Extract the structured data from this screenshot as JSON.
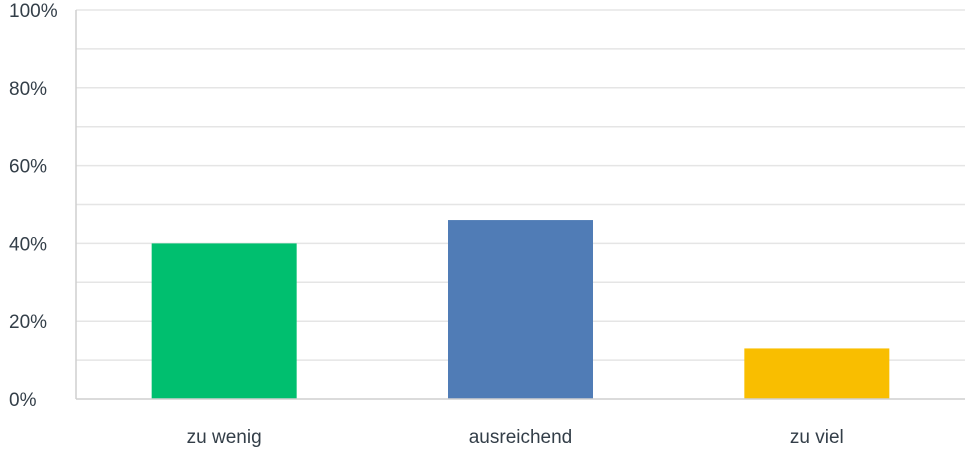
{
  "chart_data": {
    "type": "bar",
    "title": "",
    "xlabel": "",
    "ylabel": "",
    "categories": [
      "zu wenig",
      "ausreichend",
      "zu viel"
    ],
    "values": [
      40,
      46,
      13
    ],
    "colors": [
      "#00bf6f",
      "#507cb6",
      "#f9be00"
    ],
    "ylim": [
      0,
      100
    ],
    "yticks": [
      0,
      20,
      40,
      60,
      80,
      100
    ],
    "ytick_labels": [
      "0%",
      "20%",
      "40%",
      "60%",
      "80%",
      "100%"
    ],
    "minor_gridlines": true,
    "grid": true,
    "legend": false
  }
}
